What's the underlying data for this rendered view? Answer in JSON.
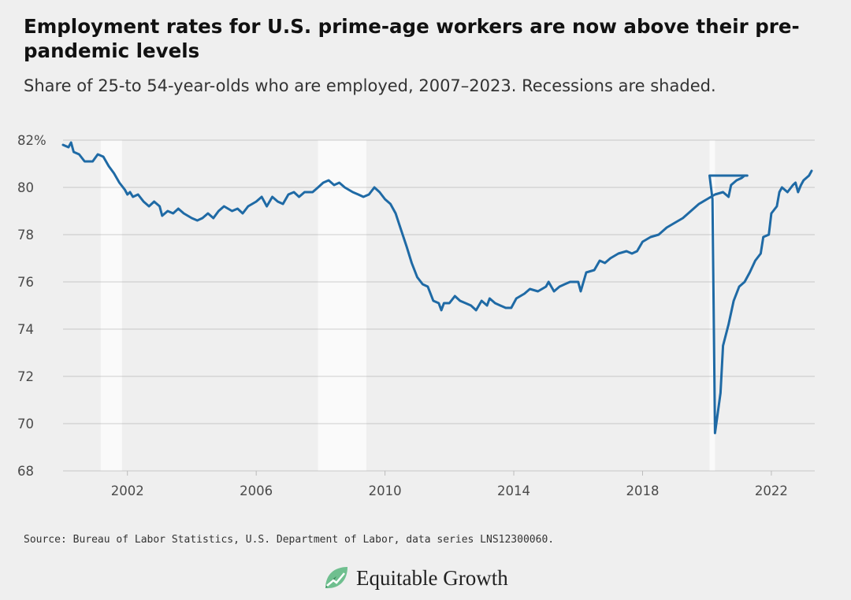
{
  "source": "Source: Bureau of Labor Statistics, U.S. Department of Labor, data series LNS12300060.",
  "brand": {
    "name": "Equitable Growth",
    "logo_icon": "equitable-growth-leaf-logo",
    "colors": {
      "leaf_dark": "#2e7d4f",
      "leaf_light": "#6fbf8f"
    }
  },
  "chart_data": {
    "type": "line",
    "title": "Employment rates for U.S. prime-age workers are now above their pre-pandemic levels",
    "subtitle": "Share of 25-to 54-year-olds who are employed, 2007–2023. Recessions are shaded.",
    "xlabel": "",
    "ylabel": "",
    "xlim": [
      2000.0,
      2023.25
    ],
    "ylim": [
      68,
      82
    ],
    "x_ticks": [
      2002,
      2006,
      2010,
      2014,
      2018,
      2022
    ],
    "x_tick_labels": [
      "2002",
      "2006",
      "2010",
      "2014",
      "2018",
      "2022"
    ],
    "y_ticks": [
      68,
      70,
      72,
      74,
      76,
      78,
      80,
      82
    ],
    "y_tick_labels": [
      "68",
      "70",
      "72",
      "74",
      "76",
      "78",
      "80",
      "82%"
    ],
    "grid": true,
    "line_color": "#1f6aa5",
    "recessions": [
      [
        2001.17,
        2001.83
      ],
      [
        2007.92,
        2009.42
      ],
      [
        2020.08,
        2020.25
      ]
    ],
    "series": [
      {
        "points": [
          [
            2000.0,
            81.8
          ],
          [
            2000.17,
            81.7
          ],
          [
            2000.25,
            81.9
          ],
          [
            2000.33,
            81.5
          ],
          [
            2000.5,
            81.4
          ],
          [
            2000.67,
            81.1
          ],
          [
            2000.92,
            81.1
          ],
          [
            2001.08,
            81.4
          ],
          [
            2001.25,
            81.3
          ],
          [
            2001.42,
            80.9
          ],
          [
            2001.58,
            80.6
          ],
          [
            2001.75,
            80.2
          ],
          [
            2001.92,
            79.9
          ],
          [
            2002.0,
            79.7
          ],
          [
            2002.08,
            79.8
          ],
          [
            2002.17,
            79.6
          ],
          [
            2002.33,
            79.7
          ],
          [
            2002.5,
            79.4
          ],
          [
            2002.67,
            79.2
          ],
          [
            2002.83,
            79.4
          ],
          [
            2003.0,
            79.2
          ],
          [
            2003.08,
            78.8
          ],
          [
            2003.25,
            79.0
          ],
          [
            2003.42,
            78.9
          ],
          [
            2003.58,
            79.1
          ],
          [
            2003.75,
            78.9
          ],
          [
            2004.0,
            78.7
          ],
          [
            2004.17,
            78.6
          ],
          [
            2004.33,
            78.7
          ],
          [
            2004.5,
            78.9
          ],
          [
            2004.67,
            78.7
          ],
          [
            2004.83,
            79.0
          ],
          [
            2005.0,
            79.2
          ],
          [
            2005.25,
            79.0
          ],
          [
            2005.42,
            79.1
          ],
          [
            2005.58,
            78.9
          ],
          [
            2005.75,
            79.2
          ],
          [
            2006.0,
            79.4
          ],
          [
            2006.17,
            79.6
          ],
          [
            2006.33,
            79.2
          ],
          [
            2006.5,
            79.6
          ],
          [
            2006.67,
            79.4
          ],
          [
            2006.83,
            79.3
          ],
          [
            2007.0,
            79.7
          ],
          [
            2007.17,
            79.8
          ],
          [
            2007.33,
            79.6
          ],
          [
            2007.5,
            79.8
          ],
          [
            2007.75,
            79.8
          ],
          [
            2007.92,
            80.0
          ],
          [
            2008.08,
            80.2
          ],
          [
            2008.25,
            80.3
          ],
          [
            2008.42,
            80.1
          ],
          [
            2008.58,
            80.2
          ],
          [
            2008.75,
            80.0
          ],
          [
            2009.0,
            79.8
          ],
          [
            2009.17,
            79.7
          ],
          [
            2009.33,
            79.6
          ],
          [
            2009.5,
            79.7
          ],
          [
            2009.67,
            80.0
          ],
          [
            2009.83,
            79.8
          ],
          [
            2010.0,
            79.5
          ],
          [
            2010.17,
            79.3
          ],
          [
            2010.33,
            78.9
          ],
          [
            2010.5,
            78.2
          ],
          [
            2010.67,
            77.5
          ],
          [
            2010.83,
            76.8
          ],
          [
            2011.0,
            76.2
          ],
          [
            2011.17,
            75.9
          ],
          [
            2011.33,
            75.8
          ],
          [
            2011.5,
            75.2
          ],
          [
            2011.67,
            75.1
          ],
          [
            2011.75,
            74.8
          ],
          [
            2011.83,
            75.1
          ],
          [
            2012.0,
            75.1
          ],
          [
            2012.17,
            75.4
          ],
          [
            2012.33,
            75.2
          ],
          [
            2012.5,
            75.1
          ],
          [
            2012.67,
            75.0
          ],
          [
            2012.83,
            74.8
          ],
          [
            2013.0,
            75.2
          ],
          [
            2013.17,
            75.0
          ],
          [
            2013.25,
            75.3
          ],
          [
            2013.42,
            75.1
          ],
          [
            2013.58,
            75.0
          ],
          [
            2013.75,
            74.9
          ],
          [
            2013.92,
            74.9
          ],
          [
            2014.08,
            75.3
          ],
          [
            2014.33,
            75.5
          ],
          [
            2014.5,
            75.7
          ],
          [
            2014.75,
            75.6
          ],
          [
            2015.0,
            75.8
          ],
          [
            2015.08,
            76.0
          ],
          [
            2015.25,
            75.6
          ],
          [
            2015.42,
            75.8
          ],
          [
            2015.58,
            75.9
          ],
          [
            2015.75,
            76.0
          ],
          [
            2016.0,
            76.0
          ],
          [
            2016.08,
            75.6
          ],
          [
            2016.25,
            76.4
          ],
          [
            2016.5,
            76.5
          ],
          [
            2016.67,
            76.9
          ],
          [
            2016.83,
            76.8
          ],
          [
            2017.0,
            77.0
          ],
          [
            2017.25,
            77.2
          ],
          [
            2017.5,
            77.3
          ],
          [
            2017.67,
            77.2
          ],
          [
            2017.83,
            77.3
          ],
          [
            2018.0,
            77.7
          ],
          [
            2018.25,
            77.9
          ],
          [
            2018.5,
            78.0
          ],
          [
            2018.75,
            78.3
          ],
          [
            2019.0,
            78.5
          ],
          [
            2019.25,
            78.7
          ],
          [
            2019.5,
            79.0
          ],
          [
            2019.75,
            79.3
          ],
          [
            2020.0,
            79.5
          ],
          [
            2020.25,
            79.7
          ],
          [
            2020.5,
            79.8
          ],
          [
            2020.67,
            79.6
          ],
          [
            2020.75,
            80.1
          ],
          [
            2020.92,
            80.3
          ],
          [
            2021.08,
            80.4
          ],
          [
            2021.17,
            80.5
          ],
          [
            2021.25,
            80.5
          ],
          [
            2020.08,
            80.5
          ],
          [
            2020.17,
            79.5
          ],
          [
            2020.25,
            69.6
          ],
          [
            2020.42,
            71.3
          ],
          [
            2020.5,
            73.3
          ],
          [
            2020.67,
            74.2
          ],
          [
            2020.83,
            75.2
          ],
          [
            2021.0,
            75.8
          ],
          [
            2021.17,
            76.0
          ],
          [
            2021.33,
            76.4
          ],
          [
            2021.5,
            76.9
          ],
          [
            2021.67,
            77.2
          ],
          [
            2021.75,
            77.9
          ],
          [
            2021.92,
            78.0
          ],
          [
            2022.0,
            78.9
          ],
          [
            2022.17,
            79.2
          ],
          [
            2022.25,
            79.8
          ],
          [
            2022.33,
            80.0
          ],
          [
            2022.5,
            79.8
          ],
          [
            2022.67,
            80.1
          ],
          [
            2022.75,
            80.2
          ],
          [
            2022.83,
            79.8
          ],
          [
            2022.92,
            80.1
          ],
          [
            2023.0,
            80.3
          ],
          [
            2023.17,
            80.5
          ],
          [
            2023.25,
            80.7
          ]
        ]
      }
    ]
  }
}
